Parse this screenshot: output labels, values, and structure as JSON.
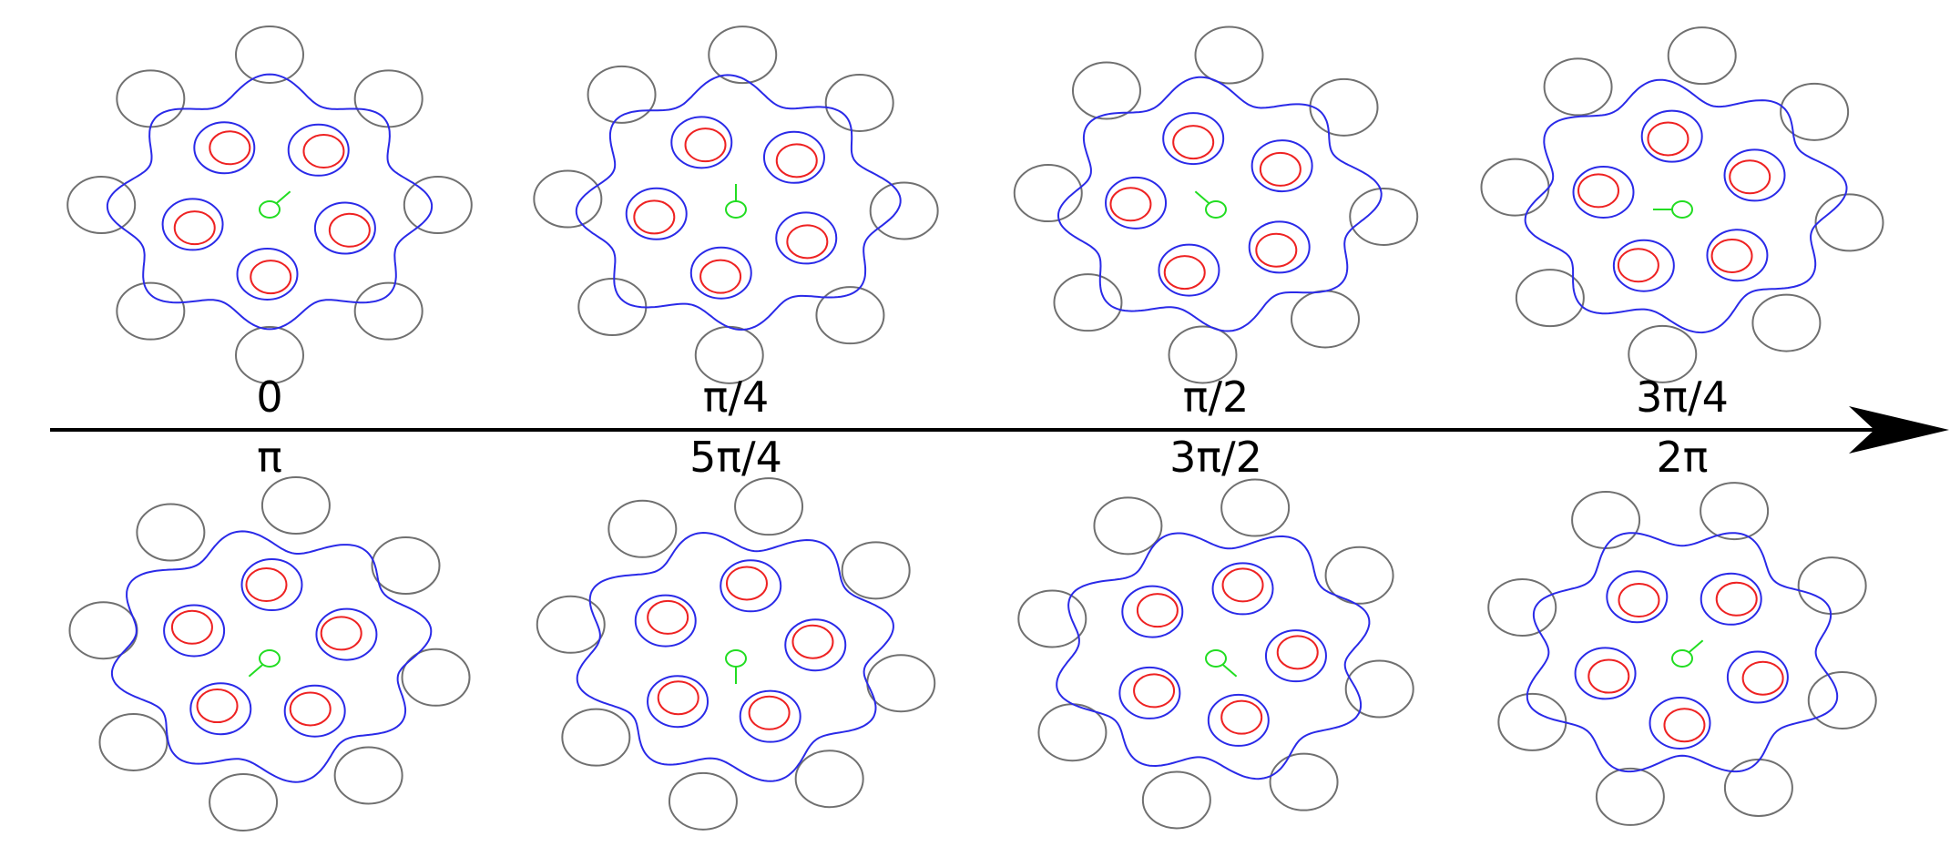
{
  "diagram": {
    "frames": [
      {
        "label": "0",
        "row": "top",
        "phase": 0
      },
      {
        "label": "π/4",
        "row": "top",
        "phase": 0.7854
      },
      {
        "label": "π/2",
        "row": "top",
        "phase": 1.5708
      },
      {
        "label": "3π/4",
        "row": "top",
        "phase": 2.3562
      },
      {
        "label": "π",
        "row": "bottom",
        "phase": 3.1416
      },
      {
        "label": "5π/4",
        "row": "bottom",
        "phase": 3.927
      },
      {
        "label": "3π/2",
        "row": "bottom",
        "phase": 4.7124
      },
      {
        "label": "2π",
        "row": "bottom",
        "phase": 6.2832
      }
    ],
    "colors": {
      "outer_circles": "#707070",
      "boundary": "#2a2ae8",
      "inner_blue": "#2a2ae8",
      "inner_red": "#ee2222",
      "center": "#22dd22",
      "axis": "#000000"
    }
  }
}
